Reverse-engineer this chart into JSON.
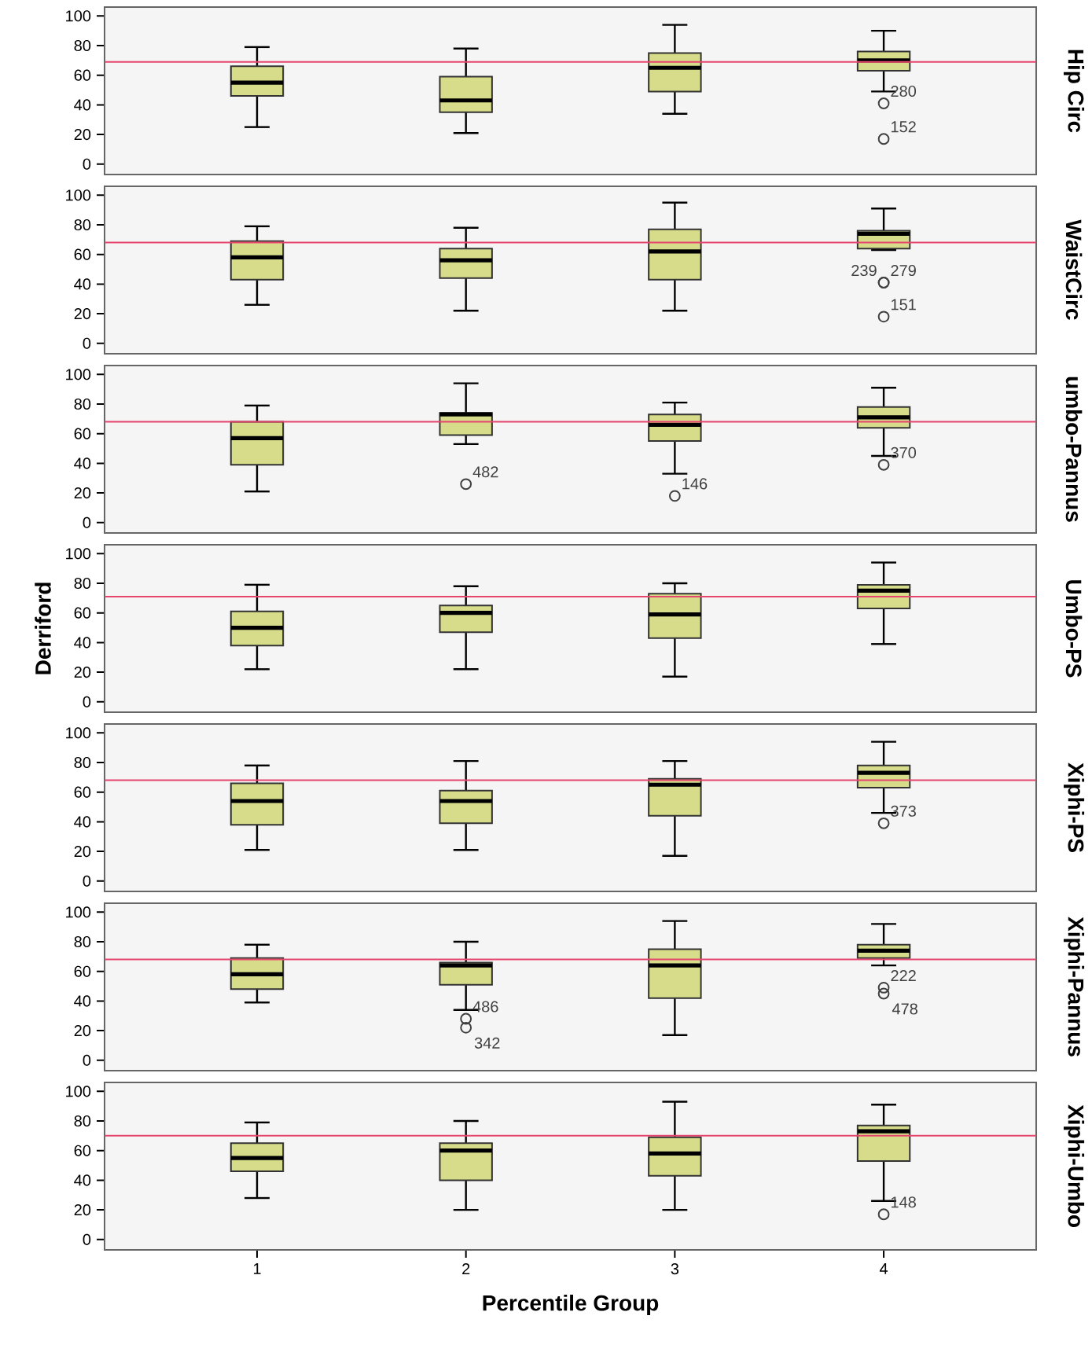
{
  "chart_data": [
    {
      "type": "box",
      "categories": [
        null,
        null,
        null,
        null
      ],
      "ylim": [
        -7,
        106
      ],
      "yticks": [
        0,
        20,
        40,
        60,
        80,
        100
      ],
      "tick_labels": "y",
      "y2label": "Hip Circ",
      "color": "#d7dc8a",
      "boxes": [
        {
          "low": 25,
          "q1": 46,
          "median": 55,
          "q3": 66,
          "high": 79
        },
        {
          "low": 21,
          "q1": 35,
          "median": 43,
          "q3": 59,
          "high": 78
        },
        {
          "low": 34,
          "q1": 49,
          "median": 65,
          "q3": 75,
          "high": 94
        },
        {
          "low": 49,
          "q1": 63,
          "median": 70,
          "q3": 76,
          "high": 90,
          "outliers": [
            41,
            17
          ]
        }
      ],
      "ref_lines": [
        {
          "axis": "y",
          "value": 69,
          "color": "#e6456e"
        }
      ],
      "annotations": [
        "280",
        "152"
      ]
    },
    {
      "type": "box",
      "categories": [
        null,
        null,
        null,
        null
      ],
      "ylim": [
        -7,
        106
      ],
      "yticks": [
        0,
        20,
        40,
        60,
        80,
        100
      ],
      "tick_labels": "y",
      "y2label": "WaistCirc",
      "color": "#d7dc8a",
      "boxes": [
        {
          "low": 26,
          "q1": 43,
          "median": 58,
          "q3": 69,
          "high": 79
        },
        {
          "low": 22,
          "q1": 44,
          "median": 56,
          "q3": 64,
          "high": 78
        },
        {
          "low": 22,
          "q1": 43,
          "median": 62,
          "q3": 77,
          "high": 95
        },
        {
          "low": 63,
          "q1": 64,
          "median": 74,
          "q3": 76,
          "high": 91,
          "outliers": [
            41,
            41,
            18
          ]
        }
      ],
      "ref_lines": [
        {
          "axis": "y",
          "value": 68,
          "color": "#e6456e"
        }
      ],
      "annotations": [
        "239",
        "279",
        "151"
      ]
    },
    {
      "type": "box",
      "categories": [
        null,
        null,
        null,
        null
      ],
      "ylim": [
        -7,
        106
      ],
      "yticks": [
        0,
        20,
        40,
        60,
        80,
        100
      ],
      "tick_labels": "y",
      "y2label": "umbo-Pannus",
      "color": "#d7dc8a",
      "boxes": [
        {
          "low": 21,
          "q1": 39,
          "median": 57,
          "q3": 68,
          "high": 79
        },
        {
          "low": 53,
          "q1": 59,
          "median": 73,
          "q3": 74,
          "high": 94,
          "outliers": [
            26
          ]
        },
        {
          "low": 33,
          "q1": 55,
          "median": 66,
          "q3": 73,
          "high": 81,
          "outliers": [
            18
          ]
        },
        {
          "low": 45,
          "q1": 64,
          "median": 71,
          "q3": 78,
          "high": 91,
          "outliers": [
            39
          ]
        }
      ],
      "ref_lines": [
        {
          "axis": "y",
          "value": 68,
          "color": "#e6456e"
        }
      ],
      "annotations": [
        "482",
        "146",
        "370"
      ]
    },
    {
      "type": "box",
      "categories": [
        null,
        null,
        null,
        null
      ],
      "ylim": [
        -7,
        106
      ],
      "yticks": [
        0,
        20,
        40,
        60,
        80,
        100
      ],
      "tick_labels": "y",
      "y2label": "Umbo-PS",
      "ylabel": "Derriford",
      "color": "#d7dc8a",
      "boxes": [
        {
          "low": 22,
          "q1": 38,
          "median": 50,
          "q3": 61,
          "high": 79
        },
        {
          "low": 22,
          "q1": 47,
          "median": 60,
          "q3": 65,
          "high": 78
        },
        {
          "low": 17,
          "q1": 43,
          "median": 59,
          "q3": 73,
          "high": 80
        },
        {
          "low": 39,
          "q1": 63,
          "median": 75,
          "q3": 79,
          "high": 94
        }
      ],
      "ref_lines": [
        {
          "axis": "y",
          "value": 71,
          "color": "#e6456e"
        }
      ]
    },
    {
      "type": "box",
      "categories": [
        null,
        null,
        null,
        null
      ],
      "ylim": [
        -7,
        106
      ],
      "yticks": [
        0,
        20,
        40,
        60,
        80,
        100
      ],
      "tick_labels": "y",
      "y2label": "Xiphi-PS",
      "color": "#d7dc8a",
      "boxes": [
        {
          "low": 21,
          "q1": 38,
          "median": 54,
          "q3": 66,
          "high": 78
        },
        {
          "low": 21,
          "q1": 39,
          "median": 54,
          "q3": 61,
          "high": 81
        },
        {
          "low": 17,
          "q1": 44,
          "median": 65,
          "q3": 69,
          "high": 81
        },
        {
          "low": 46,
          "q1": 63,
          "median": 73,
          "q3": 78,
          "high": 94,
          "outliers": [
            39
          ]
        }
      ],
      "ref_lines": [
        {
          "axis": "y",
          "value": 68,
          "color": "#e6456e"
        }
      ],
      "annotations": [
        "373"
      ]
    },
    {
      "type": "box",
      "categories": [
        null,
        null,
        null,
        null
      ],
      "ylim": [
        -7,
        106
      ],
      "yticks": [
        0,
        20,
        40,
        60,
        80,
        100
      ],
      "tick_labels": "y",
      "y2label": "Xiphi-Pannus",
      "color": "#d7dc8a",
      "boxes": [
        {
          "low": 39,
          "q1": 48,
          "median": 58,
          "q3": 69,
          "high": 78
        },
        {
          "low": 34,
          "q1": 51,
          "median": 64,
          "q3": 66,
          "high": 80,
          "outliers": [
            28,
            22
          ]
        },
        {
          "low": 17,
          "q1": 42,
          "median": 64,
          "q3": 75,
          "high": 94
        },
        {
          "low": 64,
          "q1": 69,
          "median": 74,
          "q3": 78,
          "high": 92,
          "outliers": [
            49,
            45
          ]
        }
      ],
      "ref_lines": [
        {
          "axis": "y",
          "value": 68,
          "color": "#e6456e"
        }
      ],
      "annotations": [
        "486",
        "342",
        "222",
        "478"
      ]
    },
    {
      "type": "box",
      "x": [
        1,
        2,
        3,
        4
      ],
      "xlim": [
        0.27,
        4.73
      ],
      "xticks": [
        1,
        2,
        3,
        4
      ],
      "ylim": [
        -7,
        106
      ],
      "yticks": [
        0,
        20,
        40,
        60,
        80,
        100
      ],
      "xlabel": "Percentile Group",
      "y2label": "Xiphi-Umbo",
      "color": "#d7dc8a",
      "boxes": [
        {
          "low": 28,
          "q1": 46,
          "median": 55,
          "q3": 65,
          "high": 79
        },
        {
          "low": 20,
          "q1": 40,
          "median": 60,
          "q3": 65,
          "high": 80
        },
        {
          "low": 20,
          "q1": 43,
          "median": 58,
          "q3": 69,
          "high": 93
        },
        {
          "low": 26,
          "q1": 53,
          "median": 73,
          "q3": 77,
          "high": 91,
          "outliers": [
            17
          ]
        }
      ],
      "ref_lines": [
        {
          "axis": "y",
          "value": 70,
          "color": "#e6456e"
        }
      ],
      "annotations": [
        "148"
      ]
    }
  ]
}
